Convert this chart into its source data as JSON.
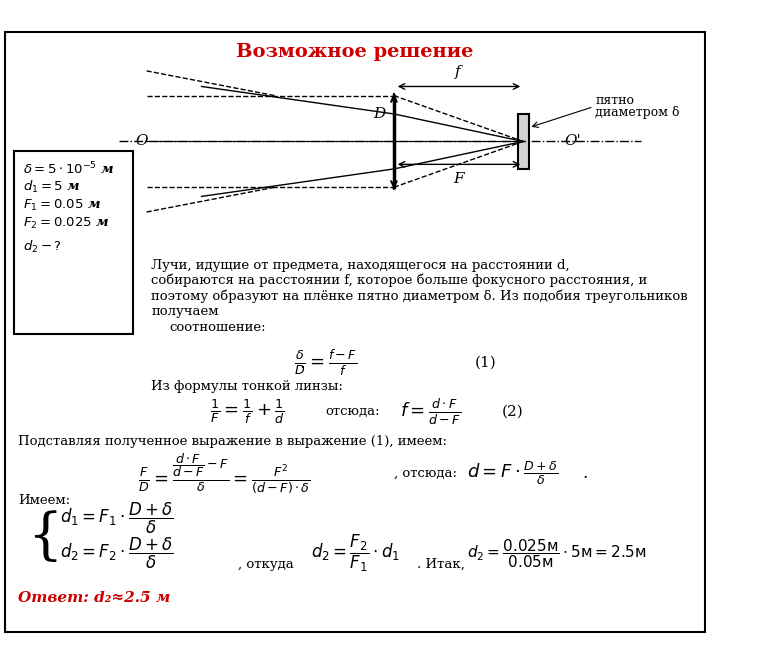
{
  "title": "Возможное решение",
  "title_color": "#cc0000",
  "bg_color": "#ffffff",
  "border_color": "#000000",
  "given_box": {
    "text_lines": [
      "δ = 5 · 10⁻⁵ м",
      "d₁ = 5м",
      "F₁ = 0.05м",
      "F₂ = 0.025м",
      "d₂ - ?"
    ]
  },
  "answer_text": "Ответ: d₂≈2.5 м",
  "answer_color": "#cc0000"
}
